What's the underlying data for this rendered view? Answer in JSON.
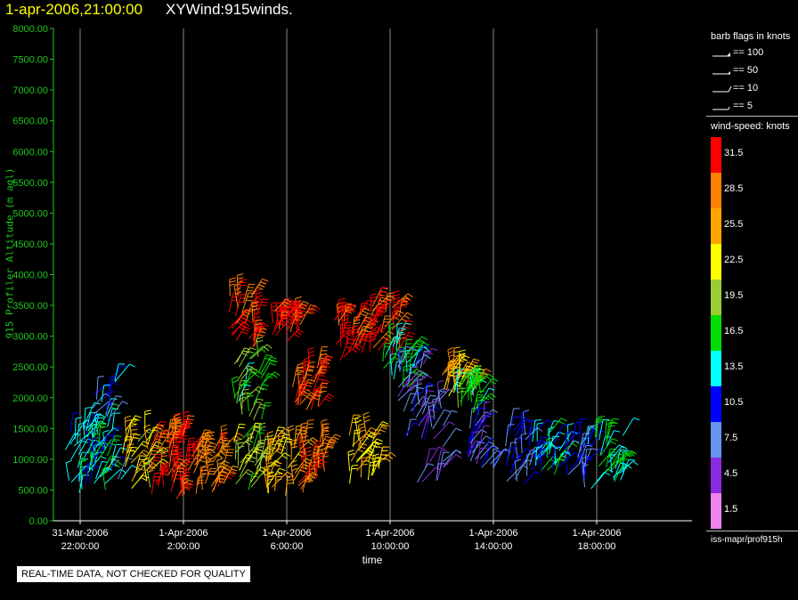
{
  "header": {
    "time": "1-apr-2006,21:00:00",
    "name": "XYWind:915winds."
  },
  "chart_data": {
    "type": "scatter",
    "title": "XYWind:915winds.",
    "xlabel": "time",
    "ylabel": "915 Profiler Altitude (m agl)",
    "ylim": [
      0,
      8000
    ],
    "yticks": [
      "0.00",
      "500.00",
      "1000.00",
      "1500.00",
      "2000.00",
      "2500.00",
      "3000.00",
      "3500.00",
      "4000.00",
      "4500.00",
      "5000.00",
      "5500.00",
      "6000.00",
      "6500.00",
      "7000.00",
      "7500.00",
      "8000.00"
    ],
    "xticks": [
      {
        "date": "31-Mar-2006",
        "time": "22:00:00"
      },
      {
        "date": "1-Apr-2006",
        "time": "2:00:00"
      },
      {
        "date": "1-Apr-2006",
        "time": "6:00:00"
      },
      {
        "date": "1-Apr-2006",
        "time": "10:00:00"
      },
      {
        "date": "1-Apr-2006",
        "time": "14:00:00"
      },
      {
        "date": "1-Apr-2006",
        "time": "18:00:00"
      }
    ],
    "grid": "vertical",
    "clusters": [
      {
        "t_hours": 0.0,
        "alt_range": [
          300,
          1700
        ],
        "speed": 12
      },
      {
        "t_hours": 0.5,
        "alt_range": [
          400,
          1600
        ],
        "speed": 16
      },
      {
        "t_hours": 1.0,
        "alt_range": [
          600,
          2300
        ],
        "speed": 11
      },
      {
        "t_hours": 2.2,
        "alt_range": [
          500,
          1500
        ],
        "speed": 23
      },
      {
        "t_hours": 3.2,
        "alt_range": [
          350,
          1400
        ],
        "speed": 30
      },
      {
        "t_hours": 4.0,
        "alt_range": [
          400,
          1500
        ],
        "speed": 31
      },
      {
        "t_hours": 5.0,
        "alt_range": [
          450,
          1200
        ],
        "speed": 28
      },
      {
        "t_hours": 6.5,
        "alt_range": [
          500,
          1400
        ],
        "speed": 20
      },
      {
        "t_hours": 7.8,
        "alt_range": [
          400,
          1300
        ],
        "speed": 24
      },
      {
        "t_hours": 9.0,
        "alt_range": [
          450,
          1300
        ],
        "speed": 28
      },
      {
        "t_hours": 11.0,
        "alt_range": [
          600,
          1400
        ],
        "speed": 24
      },
      {
        "t_hours": 6.3,
        "alt_range": [
          2800,
          3700
        ],
        "speed": 31
      },
      {
        "t_hours": 6.5,
        "alt_range": [
          1600,
          2700
        ],
        "speed": 17
      },
      {
        "t_hours": 8.0,
        "alt_range": [
          2900,
          3400
        ],
        "speed": 32
      },
      {
        "t_hours": 8.8,
        "alt_range": [
          1800,
          2500
        ],
        "speed": 30
      },
      {
        "t_hours": 10.4,
        "alt_range": [
          2600,
          3300
        ],
        "speed": 31
      },
      {
        "t_hours": 11.8,
        "alt_range": [
          2700,
          3500
        ],
        "speed": 30
      },
      {
        "t_hours": 12.3,
        "alt_range": [
          2100,
          2900
        ],
        "speed": 15
      },
      {
        "t_hours": 12.8,
        "alt_range": [
          1300,
          2600
        ],
        "speed": 7
      },
      {
        "t_hours": 13.5,
        "alt_range": [
          600,
          2000
        ],
        "speed": 6
      },
      {
        "t_hours": 14.6,
        "alt_range": [
          2000,
          2500
        ],
        "speed": 26
      },
      {
        "t_hours": 15.0,
        "alt_range": [
          1700,
          2200
        ],
        "speed": 17
      },
      {
        "t_hours": 15.5,
        "alt_range": [
          700,
          1700
        ],
        "speed": 8
      },
      {
        "t_hours": 17.0,
        "alt_range": [
          600,
          1500
        ],
        "speed": 9
      },
      {
        "t_hours": 18.0,
        "alt_range": [
          700,
          1400
        ],
        "speed": 13
      },
      {
        "t_hours": 19.3,
        "alt_range": [
          500,
          1300
        ],
        "speed": 10
      },
      {
        "t_hours": 20.5,
        "alt_range": [
          600,
          1400
        ],
        "speed": 15
      }
    ]
  },
  "legend": {
    "flags_title": "barb flags in knots",
    "flags": [
      "== 100",
      "== 50",
      "== 10",
      "== 5"
    ],
    "speed_title": "wind-speed: knots",
    "colorbar": [
      {
        "label": "31.5",
        "color": "#ff0000"
      },
      {
        "label": "28.5",
        "color": "#ff7f00"
      },
      {
        "label": "25.5",
        "color": "#ffa500"
      },
      {
        "label": "22.5",
        "color": "#ffff00"
      },
      {
        "label": "19.5",
        "color": "#9acd32"
      },
      {
        "label": "16.5",
        "color": "#00dd00"
      },
      {
        "label": "13.5",
        "color": "#00ffff"
      },
      {
        "label": "10.5",
        "color": "#0000ff"
      },
      {
        "label": "7.5",
        "color": "#6495ed"
      },
      {
        "label": "4.5",
        "color": "#8a2be2"
      },
      {
        "label": "1.5",
        "color": "#ee82ee"
      }
    ],
    "source": "iss-mapr/prof915h"
  },
  "xlabel": "time",
  "quality_note": "REAL-TIME DATA, NOT CHECKED FOR QUALITY",
  "colors": {
    "axis": "#1ec81e",
    "grid": "#888888",
    "background": "#000000"
  }
}
